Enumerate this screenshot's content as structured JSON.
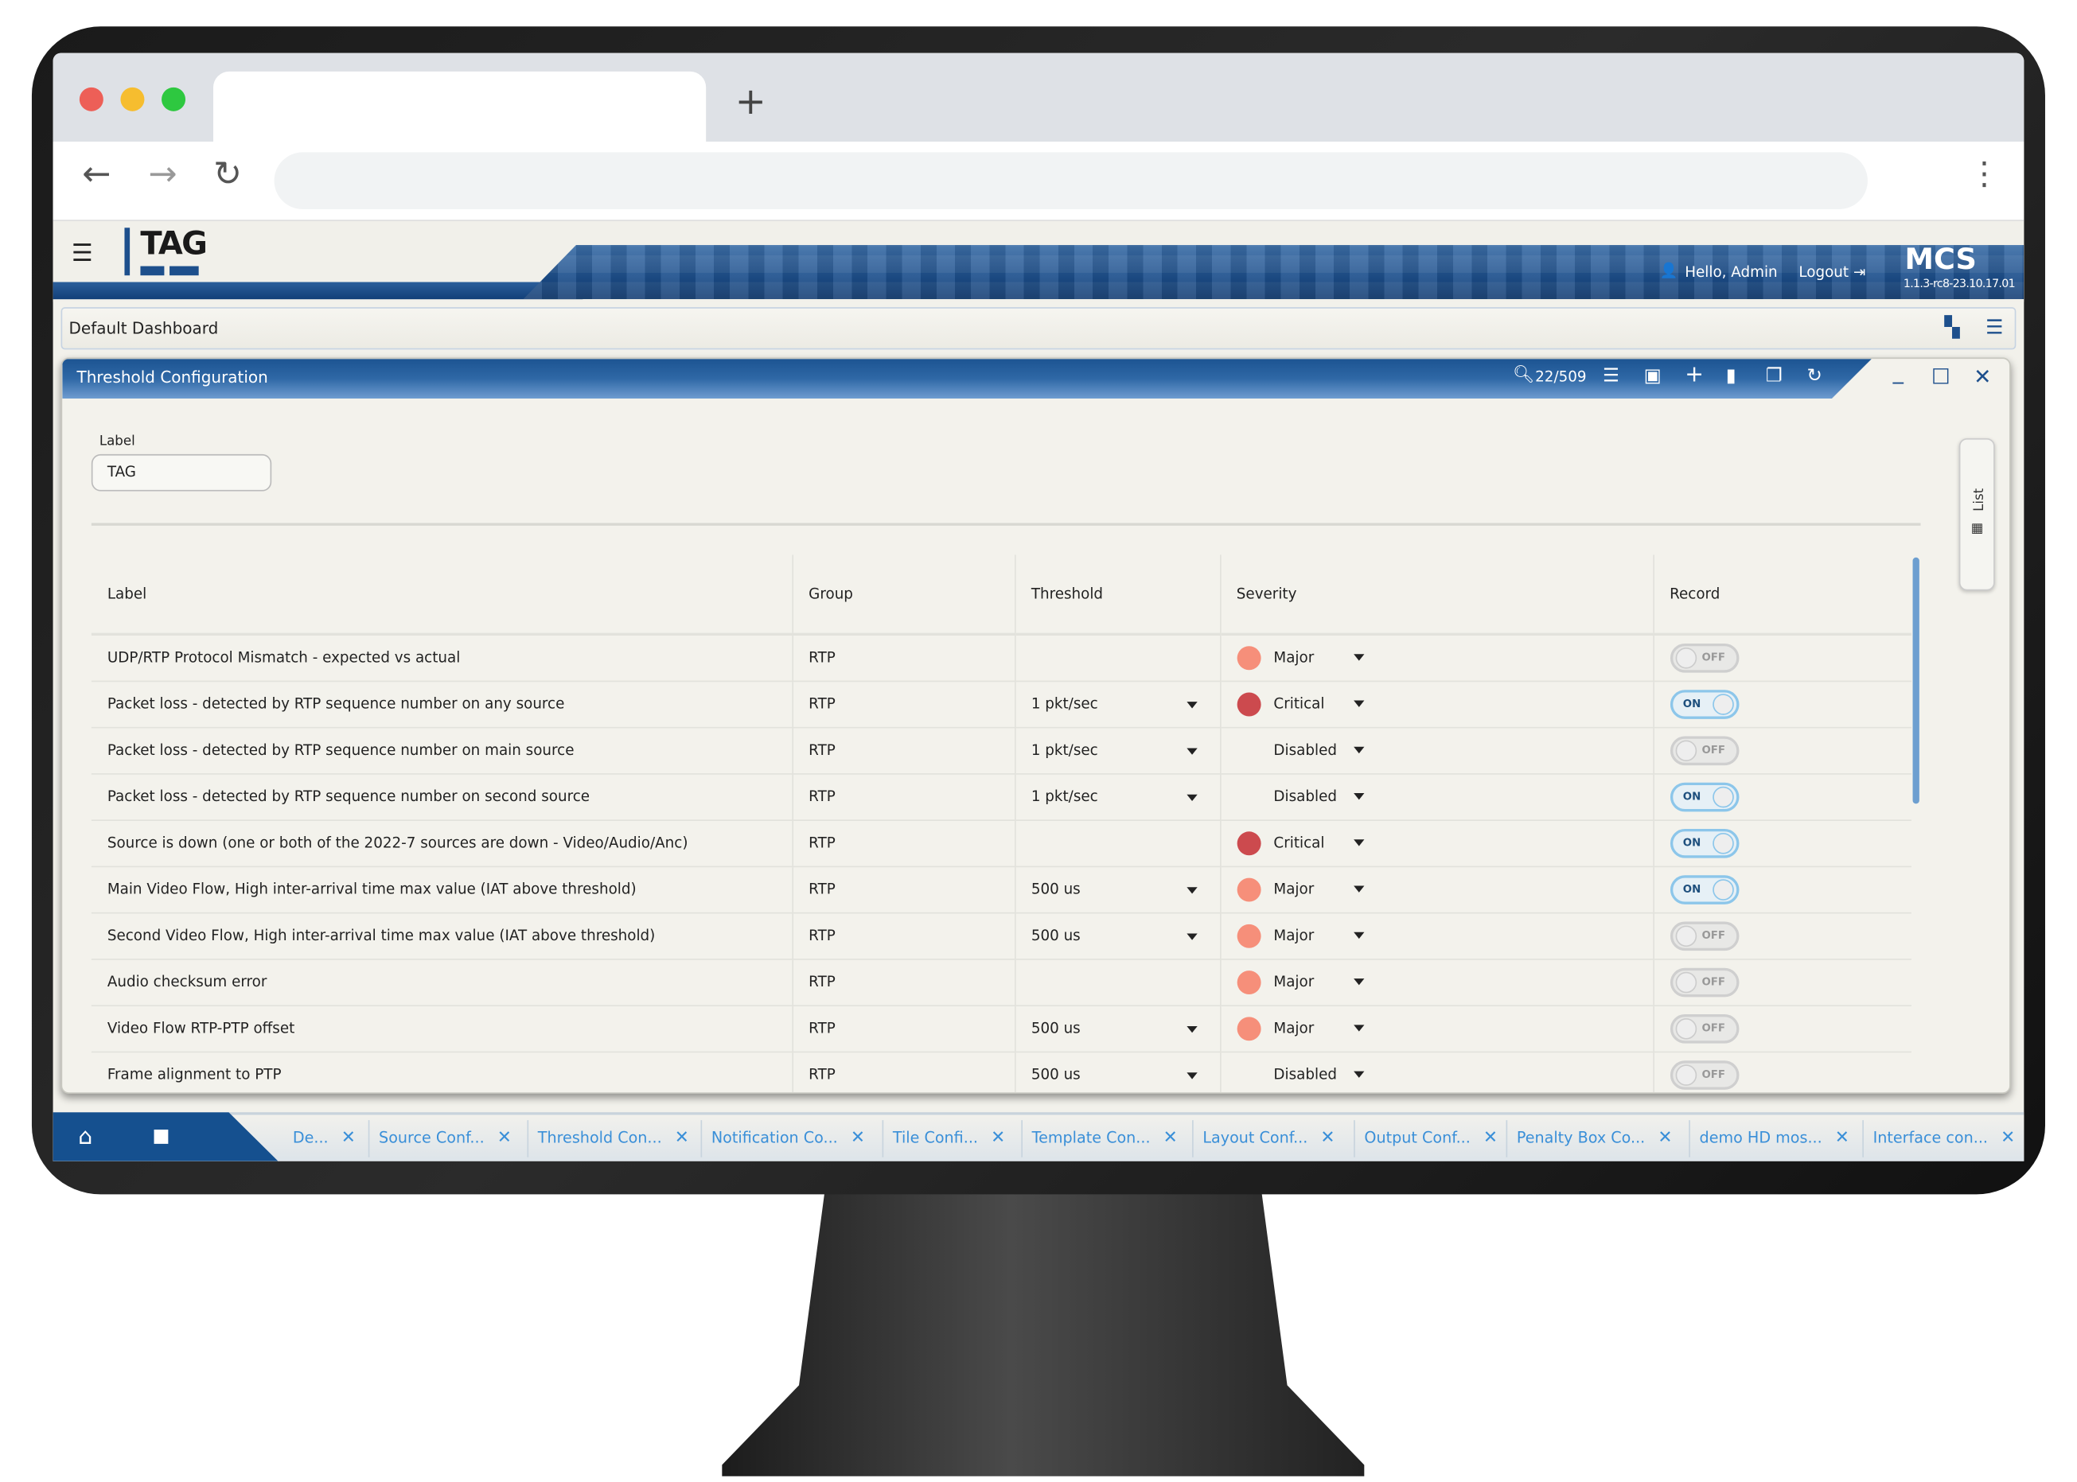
{
  "browser": {
    "new_tab": "+",
    "back": "←",
    "forward": "→",
    "reload": "↻",
    "menu": "⋮",
    "traffic_colors": [
      "#ed5f57",
      "#f6bd2f",
      "#2ec840"
    ]
  },
  "header": {
    "logo": "TAG",
    "greeting": "Hello, Admin",
    "logout": "Logout",
    "product": "MCS",
    "version": "1.1.3-rc8-23.10.17.01"
  },
  "dashboard": {
    "title": "Default Dashboard"
  },
  "panel": {
    "title": "Threshold Configuration",
    "count": "22/509"
  },
  "form": {
    "label_caption": "Label",
    "label_value": "TAG"
  },
  "side_tab": "List",
  "table": {
    "columns": [
      "Label",
      "Group",
      "Threshold",
      "Severity",
      "Record"
    ],
    "rows": [
      {
        "label": "UDP/RTP Protocol Mismatch - expected vs actual",
        "group": "RTP",
        "threshold": "",
        "severity": "Major",
        "record": false
      },
      {
        "label": "Packet loss - detected by RTP sequence number on any source",
        "group": "RTP",
        "threshold": "1 pkt/sec",
        "severity": "Critical",
        "record": true
      },
      {
        "label": "Packet loss - detected by RTP sequence number on main source",
        "group": "RTP",
        "threshold": "1 pkt/sec",
        "severity": "Disabled",
        "record": false
      },
      {
        "label": "Packet loss - detected by RTP sequence number on second source",
        "group": "RTP",
        "threshold": "1 pkt/sec",
        "severity": "Disabled",
        "record": true
      },
      {
        "label": "Source is down (one or both of the 2022-7 sources are down - Video/Audio/Anc)",
        "group": "RTP",
        "threshold": "",
        "severity": "Critical",
        "record": true
      },
      {
        "label": "Main Video Flow, High inter-arrival time max value (IAT above threshold)",
        "group": "RTP",
        "threshold": "500 us",
        "severity": "Major",
        "record": true
      },
      {
        "label": "Second Video Flow, High inter-arrival time max value (IAT above threshold)",
        "group": "RTP",
        "threshold": "500 us",
        "severity": "Major",
        "record": false
      },
      {
        "label": "Audio checksum error",
        "group": "RTP",
        "threshold": "",
        "severity": "Major",
        "record": false
      },
      {
        "label": "Video Flow RTP-PTP offset",
        "group": "RTP",
        "threshold": "500 us",
        "severity": "Major",
        "record": false
      },
      {
        "label": "Frame alignment to PTP",
        "group": "RTP",
        "threshold": "500 us",
        "severity": "Disabled",
        "record": false
      }
    ],
    "toggle_on": "ON",
    "toggle_off": "OFF",
    "severity_colors": {
      "Major": "#f68f7a",
      "Critical": "#cc4a4e"
    }
  },
  "taskbar": {
    "tabs": [
      "De...",
      "Source Conf...",
      "Threshold Con...",
      "Notification Co...",
      "Tile Confi...",
      "Template Con...",
      "Layout Conf...",
      "Output Conf...",
      "Penalty Box Co...",
      "demo HD mos...",
      "Interface con..."
    ]
  },
  "colors": {
    "brand_blue": "#1d4f8c",
    "tab_text": "#3a8fd8"
  }
}
